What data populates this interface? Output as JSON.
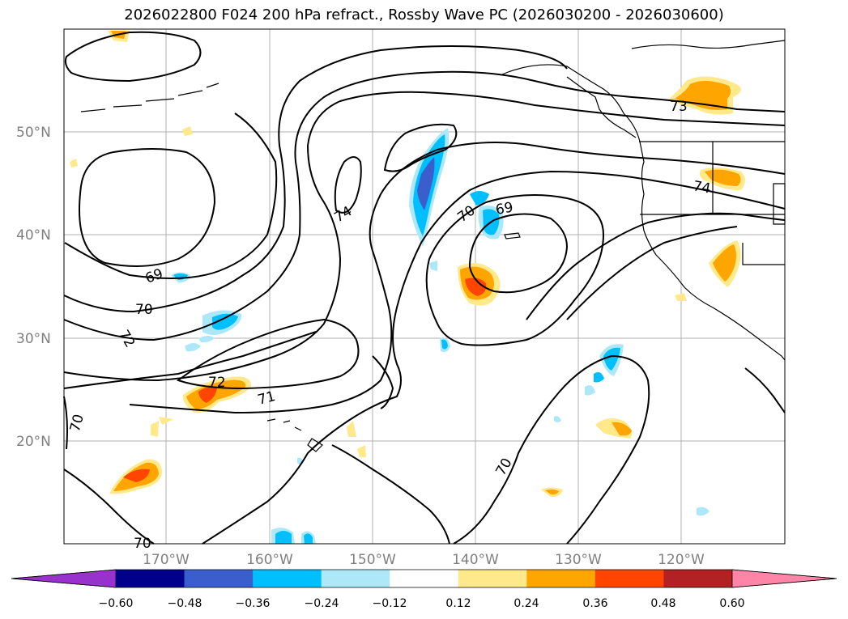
{
  "title": "2026022800 F024 200 hPa refract., Rossby Wave PC (2026030200 - 2026030600)",
  "lat_labels": [
    "50°N",
    "40°N",
    "30°N",
    "20°N"
  ],
  "lon_labels": [
    "170°W",
    "160°W",
    "150°W",
    "140°W",
    "130°W",
    "120°W"
  ],
  "contour_labels": [
    "69",
    "69",
    "70",
    "70",
    "70",
    "70",
    "70",
    "71",
    "72",
    "72",
    "73",
    "74",
    "74"
  ],
  "colorbar": {
    "tick_labels": [
      "−0.60",
      "−0.48",
      "−0.36",
      "−0.24",
      "−0.12",
      "0.12",
      "0.24",
      "0.36",
      "0.48",
      "0.60"
    ],
    "colors": [
      "#9932cc",
      "#00008b",
      "#3a5fcd",
      "#00bfff",
      "#ade8f9",
      "#ffffff",
      "#ffe98b",
      "#ffa500",
      "#ff4500",
      "#b22222",
      "#ff85a8"
    ]
  }
}
